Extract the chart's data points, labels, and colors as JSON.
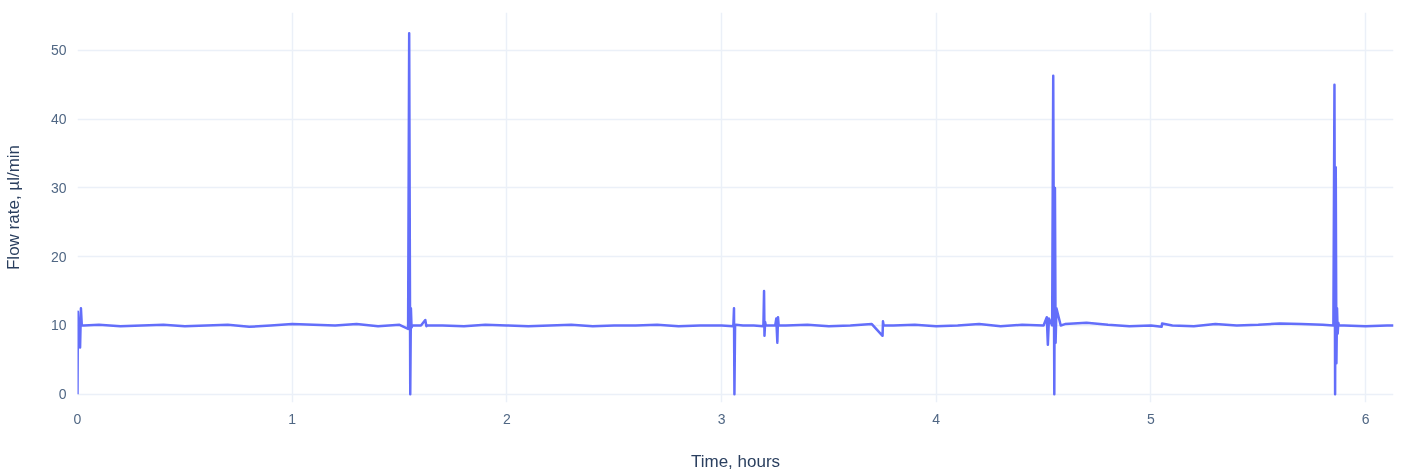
{
  "chart_data": {
    "type": "line",
    "xlabel": "Time, hours",
    "ylabel": "Flow rate, µl/min",
    "xlim": [
      0,
      6.13
    ],
    "ylim": [
      -1.2,
      55.5
    ],
    "xticks": [
      0,
      1,
      2,
      3,
      4,
      5,
      6
    ],
    "yticks": [
      0,
      10,
      20,
      30,
      40,
      50
    ],
    "grid": true,
    "marker": "none",
    "line_style": "solid",
    "series": [
      {
        "color": "#636efa",
        "x": [
          0,
          0.002,
          0.005,
          0.008,
          0.012,
          0.016,
          0.02,
          0.024,
          0.03,
          0.1,
          0.2,
          0.3,
          0.4,
          0.5,
          0.6,
          0.7,
          0.8,
          0.9,
          1.0,
          1.1,
          1.2,
          1.3,
          1.4,
          1.5,
          1.54,
          1.545,
          1.55,
          1.553,
          1.556,
          1.56,
          1.6,
          1.62,
          1.625,
          1.63,
          1.7,
          1.8,
          1.9,
          2.0,
          2.1,
          2.2,
          2.3,
          2.4,
          2.5,
          2.6,
          2.7,
          2.8,
          2.9,
          3.0,
          3.055,
          3.058,
          3.06,
          3.063,
          3.066,
          3.1,
          3.15,
          3.195,
          3.198,
          3.2,
          3.203,
          3.206,
          3.25,
          3.255,
          3.26,
          3.263,
          3.266,
          3.3,
          3.4,
          3.5,
          3.6,
          3.7,
          3.75,
          3.752,
          3.755,
          3.8,
          3.9,
          4.0,
          4.1,
          4.2,
          4.3,
          4.4,
          4.5,
          4.515,
          4.52,
          4.525,
          4.54,
          4.545,
          4.55,
          4.553,
          4.556,
          4.56,
          4.58,
          4.6,
          4.7,
          4.8,
          4.9,
          5.0,
          5.05,
          5.052,
          5.1,
          5.2,
          5.3,
          5.4,
          5.5,
          5.6,
          5.7,
          5.8,
          5.85,
          5.855,
          5.858,
          5.861,
          5.864,
          5.867,
          5.87,
          5.873,
          5.876,
          5.9,
          6.0,
          6.1,
          6.13
        ],
        "values": [
          0,
          12,
          10,
          10,
          6.8,
          12.5,
          10,
          10,
          10,
          10.1,
          9.9,
          10,
          10.1,
          9.9,
          10,
          10.1,
          9.8,
          10,
          10.2,
          10.1,
          10,
          10.2,
          9.9,
          10.1,
          9.5,
          52.5,
          0,
          12.5,
          9.7,
          10,
          10,
          10.8,
          9.9,
          10,
          10,
          9.9,
          10.1,
          10,
          9.9,
          10,
          10.1,
          9.9,
          10,
          10,
          10.1,
          9.9,
          10,
          10,
          9.9,
          12.5,
          0,
          10,
          10.1,
          10,
          10,
          9.9,
          15,
          8.5,
          10.5,
          10,
          10,
          11,
          7.5,
          11.2,
          10,
          10,
          10.1,
          9.9,
          10,
          10.2,
          8.5,
          10.6,
          10,
          10,
          10.1,
          9.9,
          10,
          10.2,
          9.9,
          10.1,
          10,
          11.2,
          7.2,
          11,
          10,
          46.3,
          0,
          30,
          7.5,
          12.5,
          10,
          10.2,
          10.4,
          10.1,
          9.9,
          10,
          9.8,
          10.3,
          10,
          9.9,
          10.2,
          10,
          10.1,
          10.3,
          10.2,
          10.1,
          10,
          45,
          0,
          33,
          4.5,
          12.5,
          8.8,
          10.4,
          10,
          10,
          9.9,
          10,
          10
        ]
      }
    ]
  }
}
